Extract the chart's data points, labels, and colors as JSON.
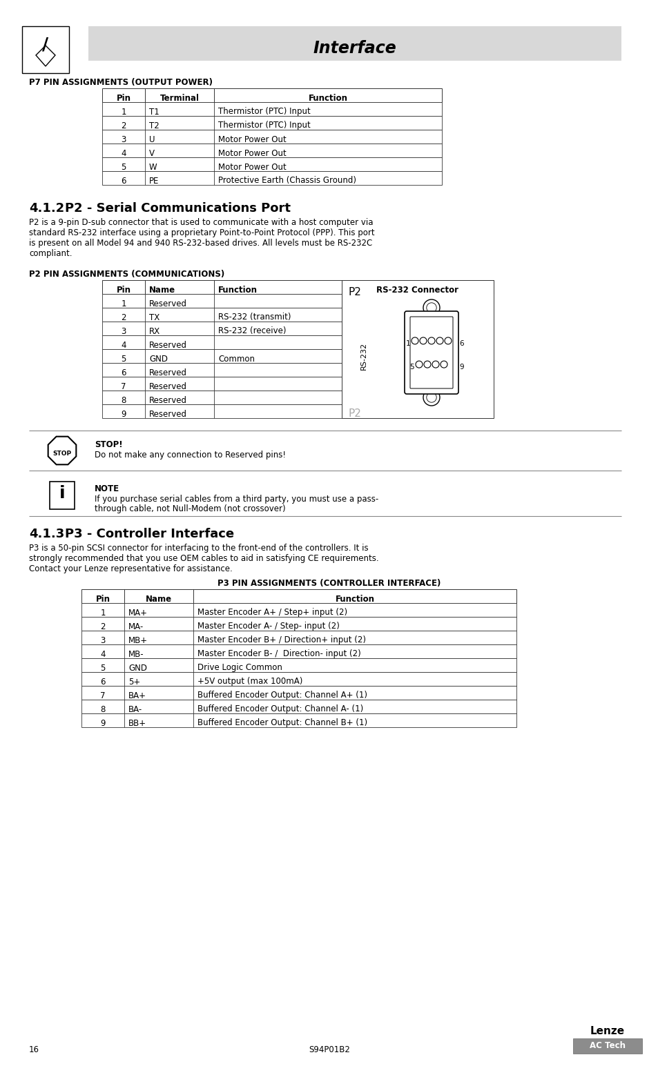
{
  "page_bg": "#ffffff",
  "header_bg": "#d8d8d8",
  "header_title": "Interface",
  "page_number": "16",
  "footer_center": "S94P01B2",
  "p7_section_title": "P7 PIN ASSIGNMENTS (OUTPUT POWER)",
  "p7_headers": [
    "Pin",
    "Terminal",
    "Function"
  ],
  "p7_rows": [
    [
      "1",
      "T1",
      "Thermistor (PTC) Input"
    ],
    [
      "2",
      "T2",
      "Thermistor (PTC) Input"
    ],
    [
      "3",
      "U",
      "Motor Power Out"
    ],
    [
      "4",
      "V",
      "Motor Power Out"
    ],
    [
      "5",
      "W",
      "Motor Power Out"
    ],
    [
      "6",
      "PE",
      "Protective Earth (Chassis Ground)"
    ]
  ],
  "section_412_number": "4.1.2",
  "section_412_title": "  P2 - Serial Communications Port",
  "section_412_body": "P2 is a 9-pin D-sub connector that is used to communicate with a host computer via\nstandard RS-232 interface using a proprietary Point-to-Point Protocol (PPP). This port\nis present on all Model 94 and 940 RS-232-based drives. All levels must be RS-232C\ncompliant.",
  "p2_section_title": "P2 PIN ASSIGNMENTS (COMMUNICATIONS)",
  "p2_headers": [
    "Pin",
    "Name",
    "Function",
    "RS-232 Connector"
  ],
  "p2_rows": [
    [
      "1",
      "Reserved",
      ""
    ],
    [
      "2",
      "TX",
      "RS-232 (transmit)"
    ],
    [
      "3",
      "RX",
      "RS-232 (receive)"
    ],
    [
      "4",
      "Reserved",
      ""
    ],
    [
      "5",
      "GND",
      "Common"
    ],
    [
      "6",
      "Reserved",
      ""
    ],
    [
      "7",
      "Reserved",
      ""
    ],
    [
      "8",
      "Reserved",
      ""
    ],
    [
      "9",
      "Reserved",
      ""
    ]
  ],
  "stop_title": "STOP!",
  "stop_body": "Do not make any connection to Reserved pins!",
  "note_title": "NOTE",
  "note_body_1": "If you purchase serial cables from a third party, you must use a pass-",
  "note_body_2": "through cable, not Null-Modem (not crossover)",
  "section_413_number": "4.1.3",
  "section_413_title": "  P3 - Controller Interface",
  "section_413_body_1": "P3 is a 50-pin SCSI connector for interfacing to the front-end of the controllers. It is",
  "section_413_body_2": "strongly recommended that you use OEM cables to aid in satisfying CE requirements.",
  "section_413_body_3": "Contact your Lenze representative for assistance.",
  "p3_section_title": "P3 PIN ASSIGNMENTS (CONTROLLER INTERFACE)",
  "p3_headers": [
    "Pin",
    "Name",
    "Function"
  ],
  "p3_rows": [
    [
      "1",
      "MA+",
      "Master Encoder A+ / Step+ input (2)"
    ],
    [
      "2",
      "MA-",
      "Master Encoder A- / Step- input (2)"
    ],
    [
      "3",
      "MB+",
      "Master Encoder B+ / Direction+ input (2)"
    ],
    [
      "4",
      "MB-",
      "Master Encoder B- /  Direction- input (2)"
    ],
    [
      "5",
      "GND",
      "Drive Logic Common"
    ],
    [
      "6",
      "5+",
      "+5V output (max 100mA)"
    ],
    [
      "7",
      "BA+",
      "Buffered Encoder Output: Channel A+ (1)"
    ],
    [
      "8",
      "BA-",
      "Buffered Encoder Output: Channel A- (1)"
    ],
    [
      "9",
      "BB+",
      "Buffered Encoder Output: Channel B+ (1)"
    ]
  ]
}
